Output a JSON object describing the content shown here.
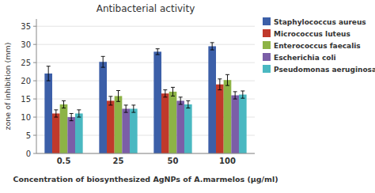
{
  "chart_data": {
    "type": "bar",
    "title": "Antibacterial activity",
    "xlabel": "Concentration of biosynthesized AgNPs of A.marmelos (μg/ml)",
    "ylabel": "zone of inhibition (mm)",
    "categories": [
      "0.5",
      "25",
      "50",
      "100"
    ],
    "series": [
      {
        "name": "Staphylococcus aureus",
        "color": "#3c5fa8",
        "values": [
          22,
          25.2,
          28,
          29.5
        ],
        "errors": [
          2.0,
          1.5,
          0.8,
          1.0
        ]
      },
      {
        "name": "Micrococcus luteus",
        "color": "#c0392b",
        "values": [
          11,
          14.5,
          16.5,
          19
        ],
        "errors": [
          1.0,
          1.2,
          1.0,
          1.5
        ]
      },
      {
        "name": "Enterococcus faecalis",
        "color": "#8db346",
        "values": [
          13.5,
          15.8,
          17,
          20.2
        ],
        "errors": [
          1.0,
          1.5,
          1.2,
          1.5
        ]
      },
      {
        "name": "Escherichia coli",
        "color": "#7b5ea7",
        "values": [
          10,
          12.3,
          14.5,
          16
        ],
        "errors": [
          1.0,
          1.0,
          1.0,
          1.0
        ]
      },
      {
        "name": "Pseudomonas aeruginosa",
        "color": "#4ab8c1",
        "values": [
          11,
          12.3,
          13.5,
          16.2
        ],
        "errors": [
          1.0,
          1.0,
          1.0,
          1.0
        ]
      }
    ],
    "ylim": [
      0,
      37
    ],
    "yticks": [
      0,
      5,
      10,
      15,
      20,
      25,
      30,
      35
    ],
    "grid": true,
    "legend": "right"
  }
}
